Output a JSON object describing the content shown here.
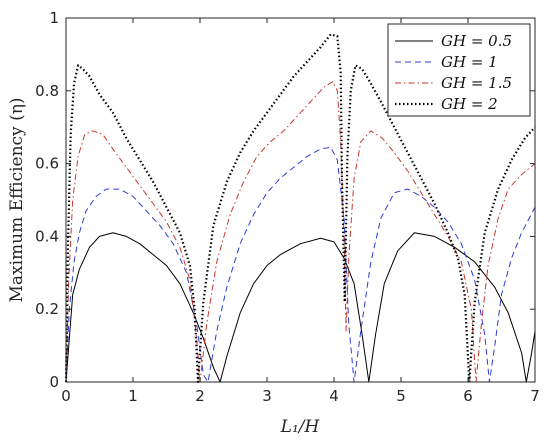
{
  "chart_data": {
    "type": "line",
    "xlabel": "L₁/H",
    "ylabel": "Maximum Efficiency (η)",
    "xlim": [
      0,
      7
    ],
    "ylim": [
      0,
      1
    ],
    "xticks": [
      "0",
      "1",
      "2",
      "3",
      "4",
      "5",
      "6",
      "7"
    ],
    "yticks": [
      "0",
      "0.2",
      "0.4",
      "0.6",
      "0.8",
      "1"
    ],
    "grid": false,
    "legend_position": "top-right",
    "series": [
      {
        "name": "GH = 0.5",
        "color": "#000000",
        "style": "solid",
        "x": [
          0,
          0.1,
          0.2,
          0.35,
          0.5,
          0.7,
          0.9,
          1.1,
          1.3,
          1.5,
          1.7,
          1.9,
          2.05,
          2.2,
          2.3,
          2.4,
          2.6,
          2.8,
          3.0,
          3.2,
          3.5,
          3.8,
          4.0,
          4.15,
          4.3,
          4.42,
          4.52,
          4.62,
          4.75,
          4.95,
          5.2,
          5.5,
          5.8,
          6.1,
          6.4,
          6.6,
          6.8,
          6.87,
          6.95,
          7.0
        ],
        "y": [
          0,
          0.24,
          0.31,
          0.37,
          0.4,
          0.41,
          0.4,
          0.38,
          0.35,
          0.32,
          0.27,
          0.19,
          0.12,
          0.04,
          0.0,
          0.07,
          0.19,
          0.27,
          0.32,
          0.35,
          0.38,
          0.395,
          0.385,
          0.34,
          0.27,
          0.13,
          0.0,
          0.13,
          0.27,
          0.36,
          0.41,
          0.4,
          0.37,
          0.33,
          0.26,
          0.19,
          0.08,
          0.0,
          0.08,
          0.14
        ]
      },
      {
        "name": "GH = 1",
        "color": "#2c3cd6",
        "style": "dashed",
        "x": [
          0,
          0.05,
          0.12,
          0.2,
          0.3,
          0.45,
          0.6,
          0.8,
          1.0,
          1.2,
          1.4,
          1.6,
          1.8,
          1.95,
          2.05,
          2.12,
          2.25,
          2.4,
          2.6,
          2.8,
          3.0,
          3.2,
          3.4,
          3.6,
          3.8,
          3.95,
          4.05,
          4.15,
          4.22,
          4.3,
          4.4,
          4.55,
          4.7,
          4.9,
          5.1,
          5.3,
          5.5,
          5.7,
          5.9,
          6.1,
          6.25,
          6.32,
          6.4,
          6.5,
          6.65,
          6.8,
          7.0
        ],
        "y": [
          0,
          0.2,
          0.33,
          0.41,
          0.47,
          0.51,
          0.53,
          0.53,
          0.51,
          0.47,
          0.43,
          0.38,
          0.3,
          0.16,
          0.02,
          0.0,
          0.14,
          0.26,
          0.38,
          0.46,
          0.52,
          0.56,
          0.59,
          0.62,
          0.64,
          0.645,
          0.61,
          0.45,
          0.16,
          0.0,
          0.14,
          0.33,
          0.45,
          0.52,
          0.53,
          0.51,
          0.48,
          0.44,
          0.38,
          0.28,
          0.13,
          0.0,
          0.1,
          0.24,
          0.34,
          0.41,
          0.48
        ]
      },
      {
        "name": "GH = 1.5",
        "color": "#c8362c",
        "style": "dashdot",
        "x": [
          0,
          0.04,
          0.1,
          0.18,
          0.28,
          0.4,
          0.55,
          0.7,
          0.9,
          1.1,
          1.3,
          1.5,
          1.7,
          1.85,
          1.95,
          2.0,
          2.1,
          2.25,
          2.45,
          2.65,
          2.85,
          3.05,
          3.25,
          3.45,
          3.65,
          3.85,
          3.98,
          4.05,
          4.1,
          4.15,
          4.18,
          4.22,
          4.3,
          4.4,
          4.55,
          4.72,
          4.9,
          5.1,
          5.3,
          5.5,
          5.7,
          5.9,
          6.05,
          6.12,
          6.2,
          6.3,
          6.45,
          6.6,
          6.8,
          7.0
        ],
        "y": [
          0,
          0.28,
          0.5,
          0.62,
          0.68,
          0.69,
          0.68,
          0.64,
          0.59,
          0.54,
          0.49,
          0.44,
          0.37,
          0.28,
          0.12,
          0.0,
          0.16,
          0.33,
          0.46,
          0.55,
          0.62,
          0.66,
          0.69,
          0.73,
          0.77,
          0.81,
          0.825,
          0.8,
          0.66,
          0.4,
          0.14,
          0.34,
          0.56,
          0.66,
          0.69,
          0.67,
          0.63,
          0.58,
          0.52,
          0.46,
          0.4,
          0.33,
          0.2,
          0.0,
          0.16,
          0.32,
          0.45,
          0.53,
          0.57,
          0.6
        ]
      },
      {
        "name": "GH = 2",
        "color": "#000000",
        "style": "dotted",
        "x": [
          0,
          0.03,
          0.07,
          0.12,
          0.18,
          0.25,
          0.35,
          0.5,
          0.7,
          0.9,
          1.1,
          1.3,
          1.5,
          1.7,
          1.85,
          1.92,
          1.97,
          2.05,
          2.2,
          2.4,
          2.6,
          2.8,
          3.0,
          3.2,
          3.4,
          3.6,
          3.8,
          3.95,
          4.05,
          4.1,
          4.12,
          4.16,
          4.2,
          4.25,
          4.32,
          4.42,
          4.55,
          4.7,
          4.9,
          5.1,
          5.3,
          5.5,
          5.7,
          5.85,
          5.95,
          6.02,
          6.1,
          6.25,
          6.45,
          6.65,
          6.85,
          7.0
        ],
        "y": [
          0,
          0.38,
          0.68,
          0.82,
          0.87,
          0.86,
          0.84,
          0.79,
          0.74,
          0.67,
          0.61,
          0.55,
          0.48,
          0.41,
          0.32,
          0.2,
          0.0,
          0.22,
          0.43,
          0.55,
          0.63,
          0.69,
          0.74,
          0.79,
          0.84,
          0.88,
          0.92,
          0.955,
          0.95,
          0.85,
          0.55,
          0.22,
          0.62,
          0.8,
          0.87,
          0.86,
          0.82,
          0.77,
          0.7,
          0.63,
          0.56,
          0.49,
          0.41,
          0.34,
          0.24,
          0.0,
          0.22,
          0.41,
          0.53,
          0.61,
          0.67,
          0.7
        ]
      }
    ],
    "legend": [
      {
        "label": "GH = 0.5",
        "color": "#000000",
        "style": "solid"
      },
      {
        "label": "GH = 1",
        "color": "#2c3cd6",
        "style": "dashed"
      },
      {
        "label": "GH = 1.5",
        "color": "#c8362c",
        "style": "dashdot"
      },
      {
        "label": "GH = 2",
        "color": "#000000",
        "style": "dotted"
      }
    ]
  }
}
